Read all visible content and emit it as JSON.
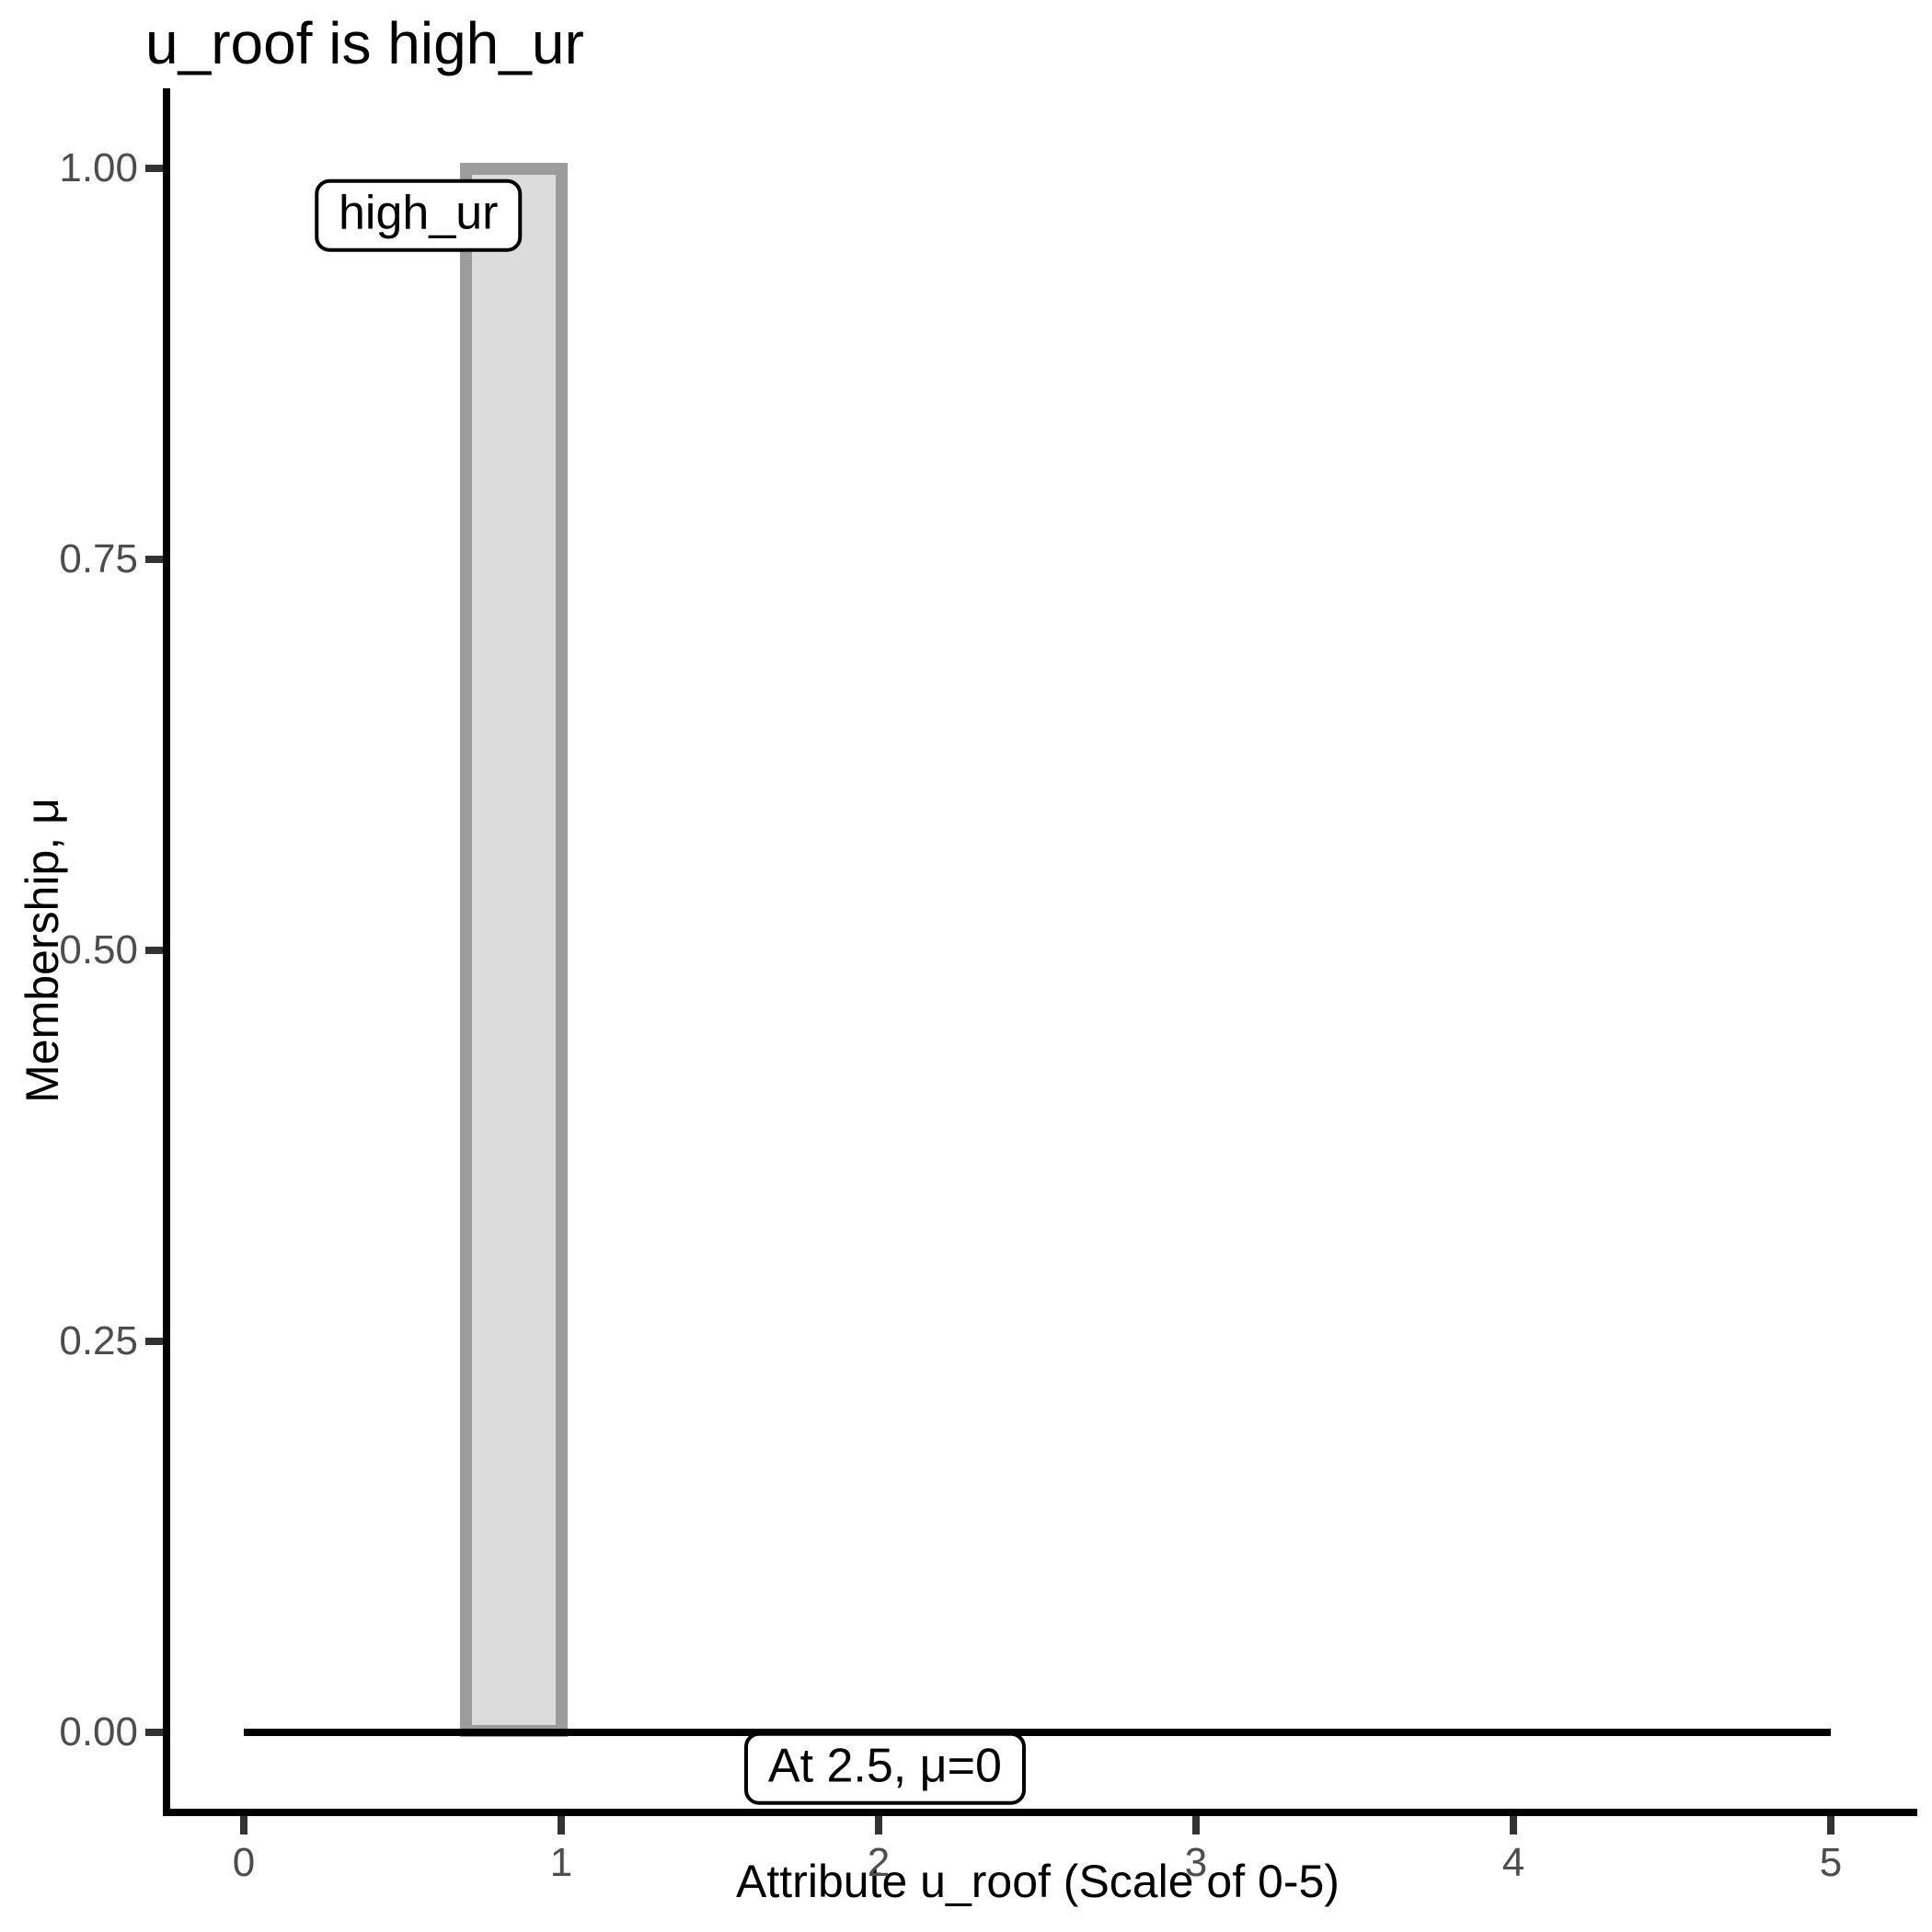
{
  "chart_data": {
    "type": "bar",
    "title": "u_roof is high_ur",
    "xlabel": "Attribute u_roof (Scale of 0-5)",
    "ylabel": "Membership, μ",
    "xlim": [
      0,
      5
    ],
    "ylim": [
      0,
      1
    ],
    "grid": false,
    "legend": false,
    "x_ticks": {
      "values": [
        0,
        1,
        2,
        3,
        4,
        5
      ],
      "labels": [
        "0",
        "1",
        "2",
        "3",
        "4",
        "5"
      ]
    },
    "y_ticks": {
      "values": [
        0,
        0.25,
        0.5,
        0.75,
        1.0
      ],
      "labels": [
        "0.00",
        "0.25",
        "0.50",
        "0.75",
        "1.00"
      ]
    },
    "series": [
      {
        "name": "high_ur",
        "shape": "rectangle",
        "x_start": 0.7,
        "x_end": 1.0,
        "membership": 1.0
      }
    ],
    "baseline": {
      "mu": 0,
      "x_start": 0,
      "x_end": 5
    },
    "annotations": [
      {
        "text": "high_ur",
        "x": 0.55,
        "mu": 0.97
      },
      {
        "text": "At 2.5, μ=0",
        "x": 2.02,
        "mu": -0.023
      }
    ]
  },
  "colors": {
    "background": "#FFFFFF",
    "axis_line": "#000000",
    "tick_mark": "#333333",
    "tick_label": "#4D4D4D",
    "text": "#000000",
    "bar_fill": "#DCDCDC",
    "bar_stroke": "#9C9C9C",
    "baseline": "#000000",
    "annotation_bg": "#FFFFFF",
    "annotation_border": "#000000"
  }
}
